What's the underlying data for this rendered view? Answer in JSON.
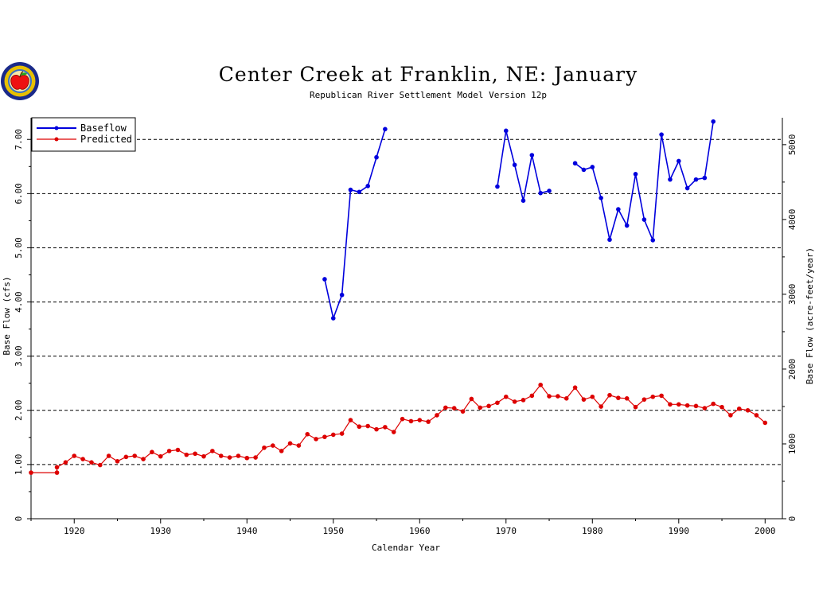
{
  "chart_data": {
    "type": "line",
    "title": "Center Creek at Franklin, NE: January",
    "subtitle": "Republican River Settlement Model Version 12p",
    "xlabel": "Calendar Year",
    "ylabel": "Base Flow (cfs)",
    "ylabel_right": "Base Flow (acre-feet/year)",
    "xlim": [
      1915,
      2002
    ],
    "ylim": [
      0,
      7.4
    ],
    "ylim_right": [
      0,
      5360
    ],
    "x_ticks": [
      1920,
      1930,
      1940,
      1950,
      1960,
      1970,
      1980,
      1990,
      2000
    ],
    "y_ticks": [
      "0",
      "1.00",
      "2.00",
      "3.00",
      "4.00",
      "5.00",
      "6.00",
      "7.00"
    ],
    "y_ticks_right": [
      "0",
      "1000",
      "2000",
      "3000",
      "4000",
      "5000"
    ],
    "grid": "horizontal dashed",
    "legend_position": "top-left",
    "series": [
      {
        "name": "Baseflow",
        "color": "#0000dd",
        "x": [
          1949,
          1950,
          1951,
          1952,
          1953,
          1954,
          1955,
          1956,
          null,
          1969,
          1970,
          1971,
          1972,
          1973,
          1974,
          1975,
          null,
          1978,
          1979,
          1980,
          1981,
          1982,
          1983,
          1984,
          1985,
          1986,
          1987,
          1988,
          1989,
          1990,
          1991,
          1992,
          1993,
          1994
        ],
        "y": [
          4.42,
          3.7,
          4.13,
          6.07,
          6.03,
          6.14,
          6.67,
          7.19,
          null,
          6.13,
          7.16,
          6.53,
          5.87,
          6.71,
          6.01,
          6.05,
          null,
          6.56,
          6.44,
          6.49,
          5.92,
          5.15,
          5.71,
          5.41,
          6.36,
          5.52,
          5.14,
          7.09,
          6.26,
          6.6,
          6.1,
          6.26,
          6.29,
          7.33
        ]
      },
      {
        "name": "Predicted",
        "color": "#dd0000",
        "x": [
          1915,
          1918,
          1918,
          1919,
          1920,
          1921,
          1922,
          1923,
          1924,
          1925,
          1926,
          1927,
          1928,
          1929,
          1930,
          1931,
          1932,
          1933,
          1934,
          1935,
          1936,
          1937,
          1938,
          1939,
          1940,
          1941,
          1942,
          1943,
          1944,
          1945,
          1946,
          1947,
          1948,
          1949,
          1950,
          1951,
          1952,
          1953,
          1954,
          1955,
          1956,
          1957,
          1958,
          1959,
          1960,
          1961,
          1962,
          1963,
          1964,
          1965,
          1966,
          1967,
          1968,
          1969,
          1970,
          1971,
          1972,
          1973,
          1974,
          1975,
          1976,
          1977,
          1978,
          1979,
          1980,
          1981,
          1982,
          1983,
          1984,
          1985,
          1986,
          1987,
          1988,
          1989,
          1990,
          1991,
          1992,
          1993,
          1994,
          1995,
          1996,
          1997,
          1998,
          1999,
          2000
        ],
        "y": [
          0.85,
          0.85,
          0.95,
          1.04,
          1.16,
          1.1,
          1.04,
          0.99,
          1.16,
          1.06,
          1.14,
          1.16,
          1.1,
          1.23,
          1.15,
          1.25,
          1.27,
          1.18,
          1.2,
          1.15,
          1.25,
          1.16,
          1.13,
          1.16,
          1.12,
          1.13,
          1.31,
          1.35,
          1.25,
          1.39,
          1.35,
          1.56,
          1.47,
          1.51,
          1.55,
          1.57,
          1.82,
          1.7,
          1.71,
          1.65,
          1.69,
          1.6,
          1.84,
          1.8,
          1.82,
          1.79,
          1.91,
          2.05,
          2.04,
          1.98,
          2.21,
          2.05,
          2.08,
          2.14,
          2.25,
          2.16,
          2.19,
          2.27,
          2.47,
          2.26,
          2.26,
          2.22,
          2.42,
          2.2,
          2.25,
          2.07,
          2.28,
          2.23,
          2.22,
          2.06,
          2.2,
          2.25,
          2.27,
          2.11,
          2.11,
          2.09,
          2.08,
          2.04,
          2.12,
          2.06,
          1.91,
          2.03,
          2.0,
          1.91,
          1.77
        ]
      }
    ]
  },
  "logo": {
    "icon": "apple-seal-icon",
    "colors": {
      "ring": "#1a2a8a",
      "gold": "#e8c000",
      "apple": "#ee1111"
    }
  }
}
